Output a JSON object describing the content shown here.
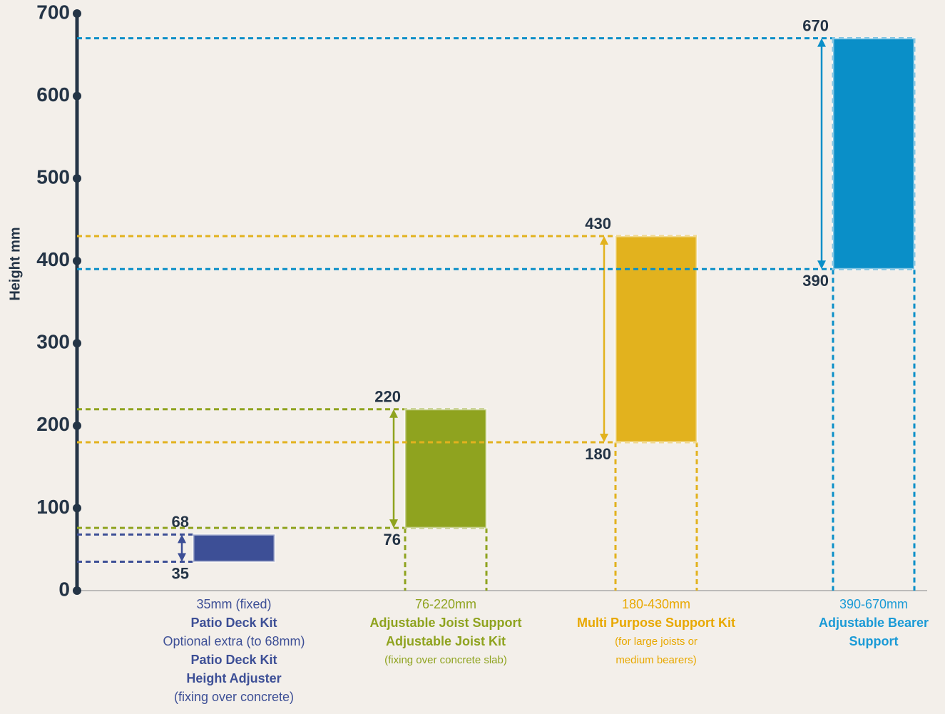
{
  "chart_data": {
    "type": "range_bar",
    "y_label": "Height mm",
    "ylim": [
      0,
      700
    ],
    "yticks": [
      0,
      100,
      200,
      300,
      400,
      500,
      600,
      700
    ],
    "categories": [
      "35mm (fixed)",
      "76-220mm",
      "180-430mm",
      "390-670mm"
    ],
    "low": [
      35,
      76,
      180,
      390
    ],
    "high": [
      68,
      220,
      430,
      670
    ],
    "colors": [
      "#3d4f96",
      "#8fa31f",
      "#e2b21e",
      "#0a8fc8"
    ],
    "text_colors": [
      "#3d4f96",
      "#8fa31f",
      "#e8a800",
      "#1a9ad6"
    ],
    "descriptions": [
      [
        {
          "text": "Patio Deck Kit",
          "style": "bold"
        },
        {
          "text": "Optional extra (to 68mm)",
          "style": "normal"
        },
        {
          "text": "Patio Deck Kit",
          "style": "bold"
        },
        {
          "text": "Height Adjuster",
          "style": "bold"
        },
        {
          "text": "(fixing over concrete)",
          "style": "normal"
        }
      ],
      [
        {
          "text": "Adjustable Joist Support",
          "style": "bold"
        },
        {
          "text": "Adjustable Joist Kit",
          "style": "bold"
        },
        {
          "text": "(fixing over concrete slab)",
          "style": "small"
        }
      ],
      [
        {
          "text": "Multi Purpose Support Kit",
          "style": "bold"
        },
        {
          "text": "(for large joists or",
          "style": "small"
        },
        {
          "text": "medium bearers)",
          "style": "small"
        }
      ],
      [
        {
          "text": "Adjustable Bearer",
          "style": "bold"
        },
        {
          "text": "Support",
          "style": "bold"
        }
      ]
    ]
  }
}
